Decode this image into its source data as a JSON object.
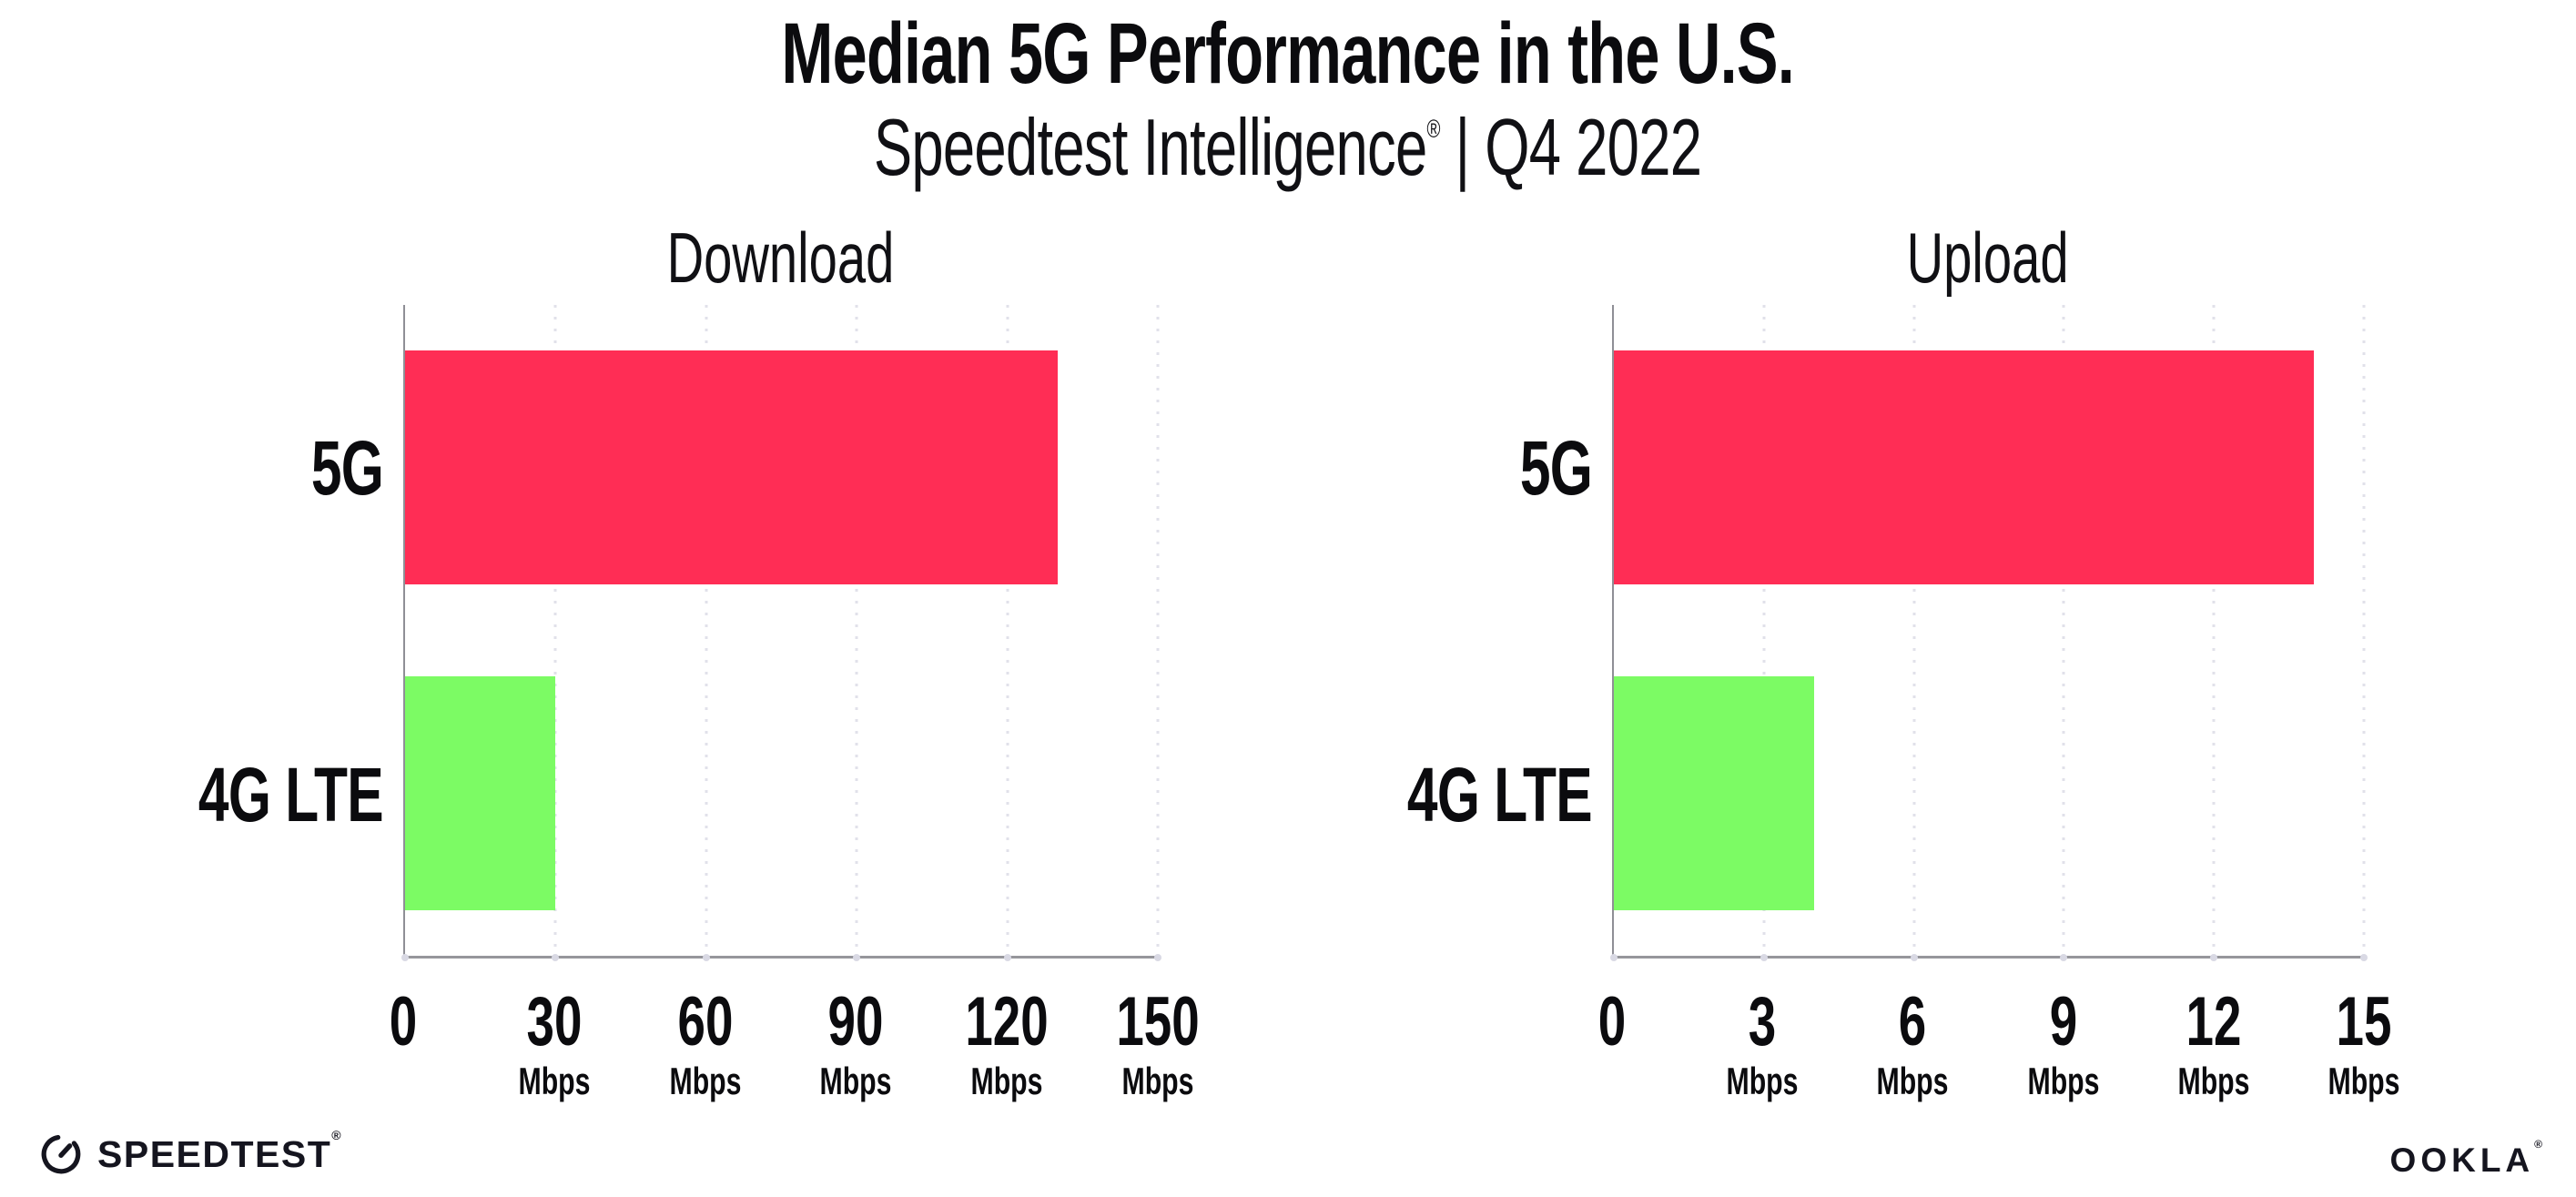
{
  "header": {
    "title": "Median 5G Performance in the U.S.",
    "subtitle_brand": "Speedtest Intelligence",
    "subtitle_reg": "®",
    "subtitle_rest": " | Q4 2022"
  },
  "chart_data": [
    {
      "type": "bar",
      "orientation": "horizontal",
      "title": "Download",
      "categories": [
        "5G",
        "4G LTE"
      ],
      "values": [
        130,
        30
      ],
      "unit": "Mbps",
      "xlim": [
        0,
        150
      ],
      "xticks": [
        0,
        30,
        60,
        90,
        120,
        150
      ],
      "bar_colors": [
        "#FF2D55",
        "#7CFB64"
      ],
      "grid": "vertical-dotted",
      "legend": "none"
    },
    {
      "type": "bar",
      "orientation": "horizontal",
      "title": "Upload",
      "categories": [
        "5G",
        "4G LTE"
      ],
      "values": [
        14,
        4
      ],
      "unit": "Mbps",
      "xlim": [
        0,
        15
      ],
      "xticks": [
        0,
        3,
        6,
        9,
        12,
        15
      ],
      "bar_colors": [
        "#FF2D55",
        "#7CFB64"
      ],
      "grid": "vertical-dotted",
      "legend": "none"
    }
  ],
  "footer": {
    "speedtest_label": "SPEEDTEST",
    "speedtest_reg": "®",
    "ookla_label": "OOKLA",
    "ookla_reg": "®"
  }
}
